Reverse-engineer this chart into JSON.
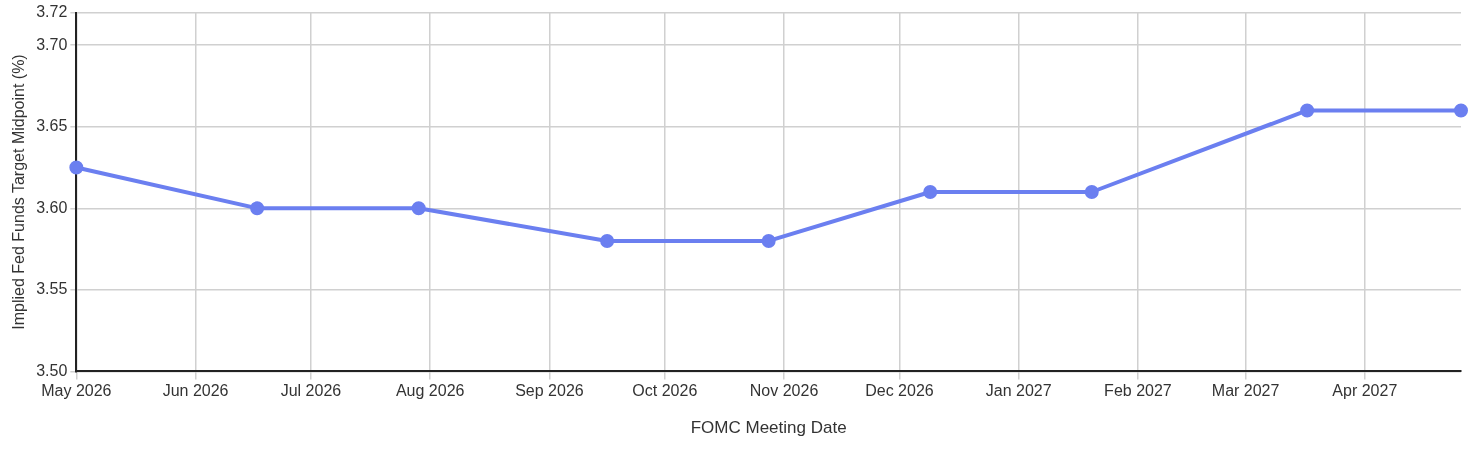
{
  "chart_data": {
    "type": "line",
    "xlabel": "FOMC Meeting Date",
    "ylabel": "Implied Fed Funds Target Midpoint (%)",
    "x": [
      "2026-05-01",
      "2026-06-17",
      "2026-07-29",
      "2026-09-16",
      "2026-10-28",
      "2026-12-09",
      "2027-01-20",
      "2027-03-17",
      "2027-04-26"
    ],
    "series": [
      {
        "color": "#6b7ff0",
        "values": [
          3.625,
          3.6,
          3.6,
          3.58,
          3.58,
          3.61,
          3.61,
          3.66,
          3.66
        ]
      }
    ],
    "xlim": [
      "2026-05-01",
      "2027-04-26"
    ],
    "xticks": [
      {
        "value": "2026-05-01",
        "label": "May 2026"
      },
      {
        "value": "2026-06-01",
        "label": "Jun 2026"
      },
      {
        "value": "2026-07-01",
        "label": "Jul 2026"
      },
      {
        "value": "2026-08-01",
        "label": "Aug 2026"
      },
      {
        "value": "2026-09-01",
        "label": "Sep 2026"
      },
      {
        "value": "2026-10-01",
        "label": "Oct 2026"
      },
      {
        "value": "2026-11-01",
        "label": "Nov 2026"
      },
      {
        "value": "2026-12-01",
        "label": "Dec 2026"
      },
      {
        "value": "2027-01-01",
        "label": "Jan 2027"
      },
      {
        "value": "2027-02-01",
        "label": "Feb 2027"
      },
      {
        "value": "2027-03-01",
        "label": "Mar 2027"
      },
      {
        "value": "2027-04-01",
        "label": "Apr 2027"
      }
    ],
    "ylim": [
      3.5,
      3.72
    ],
    "yticks": [
      {
        "value": 3.5,
        "label": "3.50"
      },
      {
        "value": 3.55,
        "label": "3.55"
      },
      {
        "value": 3.6,
        "label": "3.60"
      },
      {
        "value": 3.65,
        "label": "3.65"
      },
      {
        "value": 3.7,
        "label": "3.70"
      },
      {
        "value": 3.72,
        "label": "3.72"
      }
    ],
    "grid": true,
    "marker": "circle",
    "line_style": "solid"
  }
}
